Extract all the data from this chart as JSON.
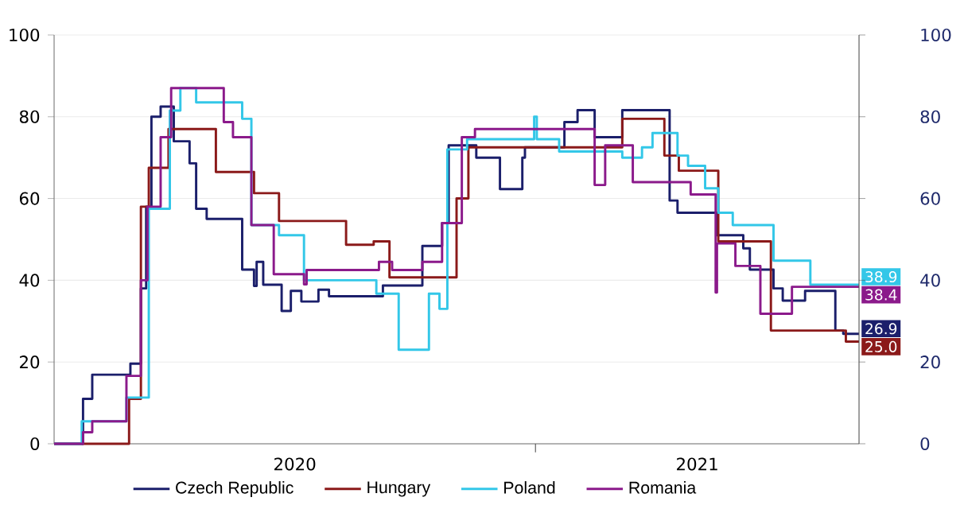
{
  "chart_data": {
    "type": "step",
    "xlim": [
      "2020-01-01",
      "2021-09-04"
    ],
    "xticks": [
      {
        "value": "2020-07-02",
        "label": "2020"
      },
      {
        "value": "2021-01-01",
        "label": null
      },
      {
        "value": "2021-05-04",
        "label": "2021"
      }
    ],
    "ylim": [
      0,
      100
    ],
    "yticks": [
      0,
      20,
      40,
      60,
      80,
      100
    ],
    "y2lim": [
      0,
      100
    ],
    "y2ticks": [
      0,
      20,
      40,
      60,
      80,
      100
    ],
    "grid": "y",
    "legend": "bottom",
    "series": [
      {
        "name": "Czech Republic",
        "color": "#1b1f6b",
        "x": [
          "2020-01-01",
          "2020-01-23",
          "2020-01-30",
          "2020-02-28",
          "2020-03-07",
          "2020-03-11",
          "2020-03-15",
          "2020-03-22",
          "2020-04-01",
          "2020-04-13",
          "2020-04-18",
          "2020-04-26",
          "2020-05-23",
          "2020-06-01",
          "2020-06-03",
          "2020-06-08",
          "2020-06-22",
          "2020-06-29",
          "2020-07-07",
          "2020-07-20",
          "2020-07-28",
          "2020-09-07",
          "2020-10-07",
          "2020-10-22",
          "2020-10-27",
          "2020-11-17",
          "2020-12-05",
          "2020-12-22",
          "2020-12-24",
          "2021-01-23",
          "2021-02-02",
          "2021-02-15",
          "2021-03-08",
          "2021-04-13",
          "2021-04-19",
          "2021-05-19",
          "2021-06-08",
          "2021-06-13",
          "2021-07-01",
          "2021-07-08",
          "2021-07-25",
          "2021-08-17",
          "2021-08-23",
          "2021-09-04"
        ],
        "values": [
          0,
          11,
          16.9,
          19.6,
          38,
          58,
          80,
          82.5,
          74,
          68.6,
          57.5,
          55,
          42.6,
          38.6,
          44.5,
          38.9,
          32.5,
          37.4,
          34.8,
          37.7,
          36.1,
          38.7,
          48.4,
          54,
          73,
          70,
          62.3,
          70,
          72.5,
          78.7,
          81.6,
          75,
          81.6,
          59.5,
          56.5,
          51,
          47.8,
          42.6,
          38,
          35,
          37.4,
          27.7,
          26.9,
          26.9
        ],
        "value_labels": [
          null,
          null,
          null,
          null,
          null,
          null,
          null,
          null,
          null,
          null,
          null,
          null,
          null,
          null,
          null,
          null,
          null,
          null,
          null,
          null,
          null,
          null,
          null,
          null,
          null,
          null,
          null,
          null,
          null,
          null,
          null,
          null,
          null,
          null,
          null,
          null,
          null,
          null,
          null,
          null,
          null,
          null,
          null,
          "26.9"
        ]
      },
      {
        "name": "Hungary",
        "color": "#8b1a1a",
        "x": [
          "2020-01-01",
          "2020-02-27",
          "2020-03-07",
          "2020-03-13",
          "2020-03-28",
          "2020-05-03",
          "2020-06-01",
          "2020-06-20",
          "2020-08-10",
          "2020-08-31",
          "2020-09-12",
          "2020-11-02",
          "2020-11-11",
          "2021-03-08",
          "2021-04-09",
          "2021-04-20",
          "2021-05-20",
          "2021-06-29",
          "2021-08-25",
          "2021-09-04"
        ],
        "values": [
          0,
          11,
          58,
          67.5,
          77,
          66.5,
          61.3,
          54.5,
          48.7,
          49.5,
          40.7,
          60,
          72.5,
          79.5,
          70.5,
          66.8,
          49.5,
          27.7,
          25.0,
          25.0
        ],
        "value_labels": [
          null,
          null,
          null,
          null,
          null,
          null,
          null,
          null,
          null,
          null,
          null,
          null,
          null,
          null,
          null,
          null,
          null,
          null,
          null,
          "25.0"
        ]
      },
      {
        "name": "Poland",
        "color": "#33c7e8",
        "x": [
          "2020-01-01",
          "2020-01-22",
          "2020-02-25",
          "2020-03-13",
          "2020-03-29",
          "2020-04-06",
          "2020-04-18",
          "2020-05-23",
          "2020-05-30",
          "2020-06-20",
          "2020-07-09",
          "2020-09-02",
          "2020-09-19",
          "2020-10-12",
          "2020-10-20",
          "2020-10-26",
          "2020-11-10",
          "2020-12-31",
          "2021-01-02",
          "2021-01-19",
          "2021-03-08",
          "2021-03-23",
          "2021-03-31",
          "2021-04-19",
          "2021-04-27",
          "2021-05-10",
          "2021-05-20",
          "2021-05-31",
          "2021-07-01",
          "2021-07-29",
          "2021-09-04"
        ],
        "values": [
          0,
          5.5,
          11.3,
          57.5,
          81.5,
          87,
          83.5,
          79.5,
          53.5,
          51,
          40,
          36.7,
          23,
          36.7,
          33,
          72,
          74.5,
          80,
          74.5,
          71.5,
          70,
          72.5,
          76,
          70.5,
          68,
          62.5,
          56.5,
          53.5,
          44.8,
          38.9,
          38.9
        ],
        "value_labels": [
          null,
          null,
          null,
          null,
          null,
          null,
          null,
          null,
          null,
          null,
          null,
          null,
          null,
          null,
          null,
          null,
          null,
          null,
          null,
          null,
          null,
          null,
          null,
          null,
          null,
          null,
          null,
          null,
          null,
          null,
          "38.9"
        ]
      },
      {
        "name": "Romania",
        "color": "#8b1a8b",
        "x": [
          "2020-01-01",
          "2020-01-23",
          "2020-01-30",
          "2020-02-25",
          "2020-03-07",
          "2020-03-12",
          "2020-03-22",
          "2020-03-30",
          "2020-05-09",
          "2020-05-16",
          "2020-05-30",
          "2020-06-16",
          "2020-07-09",
          "2020-07-11",
          "2020-09-04",
          "2020-09-14",
          "2020-10-07",
          "2020-10-22",
          "2020-11-06",
          "2020-11-16",
          "2021-02-15",
          "2021-02-23",
          "2021-03-16",
          "2021-04-29",
          "2021-05-18",
          "2021-05-19",
          "2021-06-02",
          "2021-06-21",
          "2021-07-15",
          "2021-09-04"
        ],
        "values": [
          0,
          2.8,
          5.5,
          16.6,
          40,
          58,
          75,
          87,
          78.7,
          75,
          53.5,
          41.5,
          39,
          42.5,
          44.5,
          42.5,
          44.5,
          54,
          75,
          77,
          63.3,
          73,
          64,
          61,
          37,
          49,
          43.5,
          31.8,
          38.4,
          38.4
        ],
        "value_labels": [
          null,
          null,
          null,
          null,
          null,
          null,
          null,
          null,
          null,
          null,
          null,
          null,
          null,
          null,
          null,
          null,
          null,
          null,
          null,
          null,
          null,
          null,
          null,
          null,
          null,
          null,
          null,
          null,
          null,
          "38.4"
        ]
      }
    ]
  }
}
